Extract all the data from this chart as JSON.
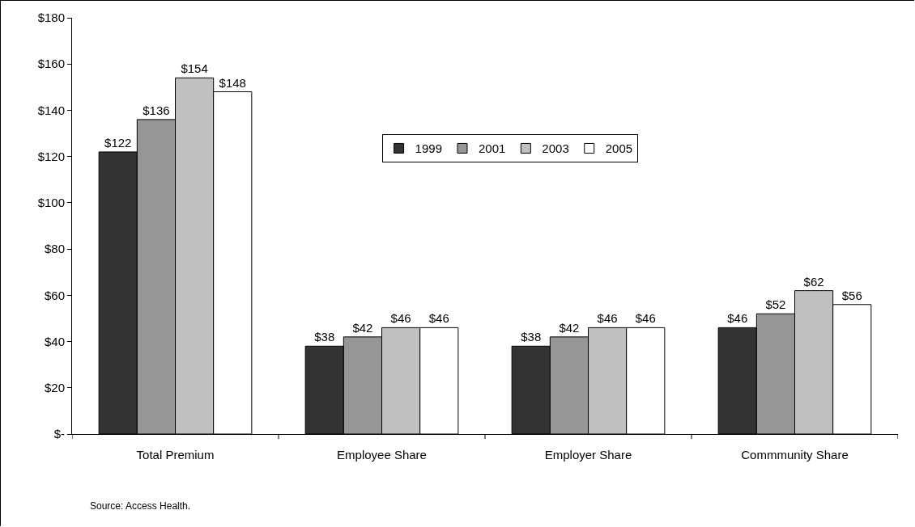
{
  "chart_data": {
    "type": "bar",
    "categories": [
      "Total Premium",
      "Employee Share",
      "Employer Share",
      "Commmunity Share"
    ],
    "series": [
      {
        "name": "1999",
        "color": "#333333",
        "values": [
          122,
          38,
          38,
          46
        ],
        "value_labels": [
          "$122",
          "$38",
          "$38",
          "$46"
        ]
      },
      {
        "name": "2001",
        "color": "#969696",
        "values": [
          136,
          42,
          42,
          52
        ],
        "value_labels": [
          "$136",
          "$42",
          "$42",
          "$52"
        ]
      },
      {
        "name": "2003",
        "color": "#c0c0c0",
        "values": [
          154,
          46,
          46,
          62
        ],
        "value_labels": [
          "$154",
          "$46",
          "$46",
          "$62"
        ]
      },
      {
        "name": "2005",
        "color": "#ffffff",
        "values": [
          148,
          46,
          46,
          56
        ],
        "value_labels": [
          "$148",
          "$46",
          "$46",
          "$56"
        ]
      }
    ],
    "ylim": [
      0,
      180
    ],
    "yticks": [
      {
        "value": 0,
        "label": "$-"
      },
      {
        "value": 20,
        "label": "$20"
      },
      {
        "value": 40,
        "label": "$40"
      },
      {
        "value": 60,
        "label": "$60"
      },
      {
        "value": 80,
        "label": "$80"
      },
      {
        "value": 100,
        "label": "$100"
      },
      {
        "value": 120,
        "label": "$120"
      },
      {
        "value": 140,
        "label": "$140"
      },
      {
        "value": 160,
        "label": "$160"
      },
      {
        "value": 180,
        "label": "$180"
      }
    ],
    "grid": false,
    "legend": "top",
    "annotations": [
      "Source: Access Health."
    ]
  }
}
